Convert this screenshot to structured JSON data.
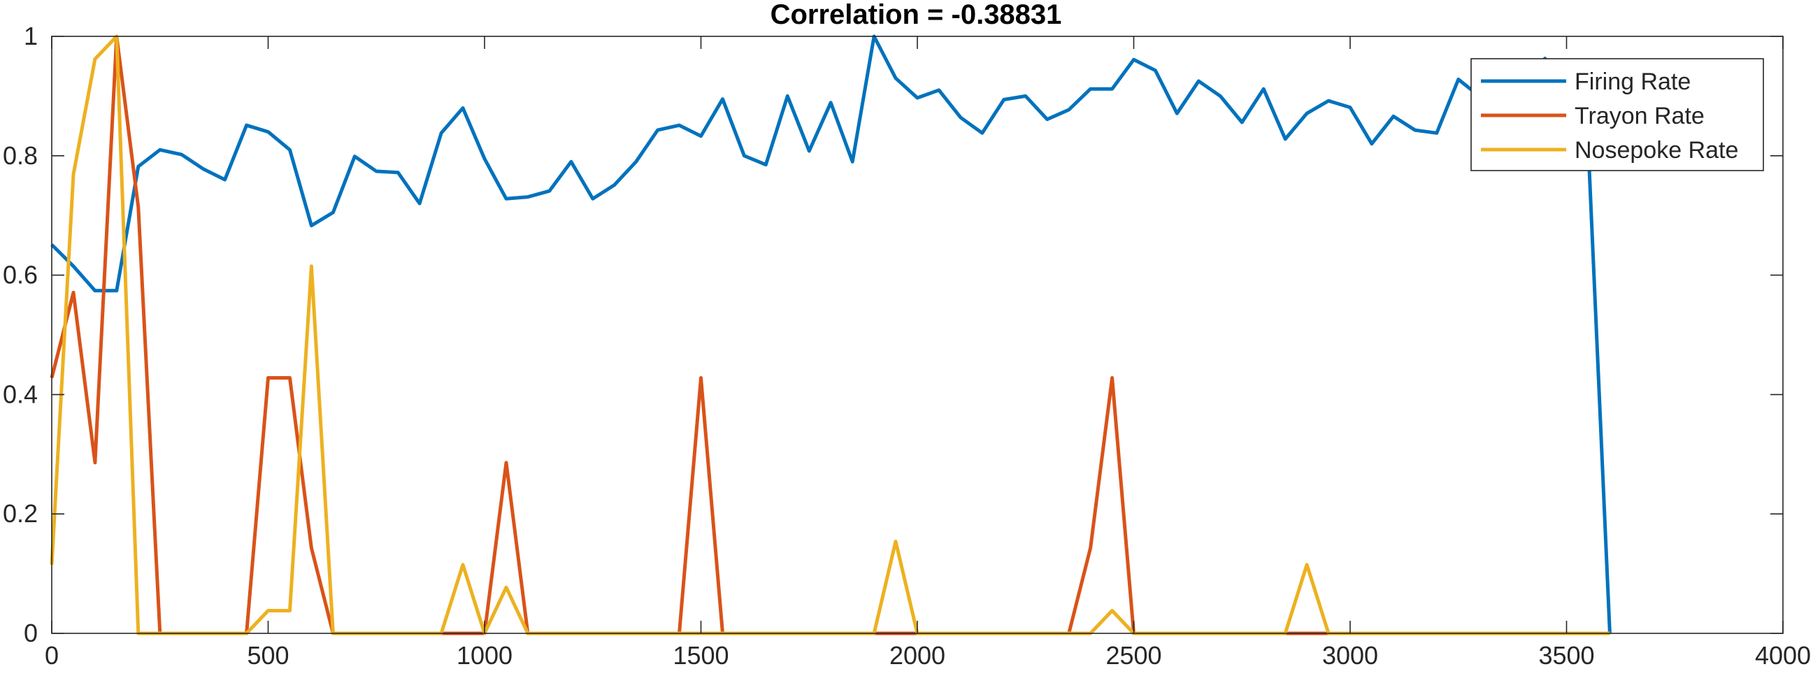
{
  "chart_data": {
    "type": "line",
    "title": "Correlation = -0.38831",
    "xlabel": "",
    "ylabel": "",
    "xlim": [
      0,
      4000
    ],
    "ylim": [
      0,
      1
    ],
    "xticks": [
      "0",
      "500",
      "1000",
      "1500",
      "2000",
      "2500",
      "3000",
      "3500",
      "4000"
    ],
    "yticks": [
      "0",
      "0.2",
      "0.4",
      "0.6",
      "0.8",
      "1"
    ],
    "grid": false,
    "legend": "top-right",
    "series": [
      {
        "name": "Firing Rate",
        "color": "#0072BD",
        "x": [
          0,
          50,
          100,
          150,
          200,
          250,
          300,
          350,
          400,
          450,
          500,
          550,
          600,
          650,
          700,
          750,
          800,
          850,
          900,
          950,
          1000,
          1050,
          1100,
          1150,
          1200,
          1250,
          1300,
          1350,
          1400,
          1450,
          1500,
          1550,
          1600,
          1650,
          1700,
          1750,
          1800,
          1850,
          1900,
          1950,
          2000,
          2050,
          2100,
          2150,
          2200,
          2250,
          2300,
          2350,
          2400,
          2450,
          2500,
          2550,
          2600,
          2650,
          2700,
          2750,
          2800,
          2850,
          2900,
          2950,
          3000,
          3050,
          3100,
          3150,
          3200,
          3250,
          3300,
          3350,
          3400,
          3450,
          3500,
          3550,
          3600
        ],
        "y": [
          0.651,
          0.615,
          0.574,
          0.574,
          0.782,
          0.81,
          0.802,
          0.778,
          0.76,
          0.851,
          0.84,
          0.81,
          0.683,
          0.705,
          0.799,
          0.774,
          0.772,
          0.72,
          0.838,
          0.88,
          0.795,
          0.728,
          0.731,
          0.741,
          0.79,
          0.728,
          0.751,
          0.79,
          0.843,
          0.851,
          0.833,
          0.895,
          0.8,
          0.785,
          0.9,
          0.808,
          0.889,
          0.79,
          1.0,
          0.93,
          0.897,
          0.91,
          0.864,
          0.838,
          0.894,
          0.9,
          0.861,
          0.877,
          0.912,
          0.912,
          0.961,
          0.943,
          0.871,
          0.925,
          0.9,
          0.856,
          0.912,
          0.828,
          0.871,
          0.892,
          0.881,
          0.82,
          0.866,
          0.843,
          0.838,
          0.928,
          0.899,
          0.887,
          0.905,
          0.963,
          0.92,
          0.82,
          0.0
        ]
      },
      {
        "name": "Trayon Rate",
        "color": "#D95319",
        "x": [
          0,
          50,
          100,
          150,
          200,
          250,
          300,
          350,
          400,
          450,
          500,
          550,
          600,
          650,
          700,
          750,
          800,
          850,
          900,
          950,
          1000,
          1050,
          1100,
          1150,
          1200,
          1250,
          1300,
          1350,
          1400,
          1450,
          1500,
          1550,
          1600,
          1650,
          1700,
          1750,
          1800,
          1850,
          1900,
          1950,
          2000,
          2050,
          2100,
          2150,
          2200,
          2250,
          2300,
          2350,
          2400,
          2450,
          2500,
          2550,
          2600,
          2650,
          2700,
          2750,
          2800,
          2850,
          2900,
          2950,
          3000,
          3050,
          3100,
          3150,
          3200,
          3250,
          3300,
          3350,
          3400,
          3450,
          3500,
          3550,
          3600
        ],
        "y": [
          0.428,
          0.571,
          0.286,
          1.0,
          0.714,
          0,
          0,
          0,
          0,
          0,
          0.428,
          0.428,
          0.143,
          0,
          0,
          0,
          0,
          0,
          0,
          0,
          0,
          0.286,
          0,
          0,
          0,
          0,
          0,
          0,
          0,
          0,
          0.428,
          0,
          0,
          0,
          0,
          0,
          0,
          0,
          0,
          0,
          0,
          0,
          0,
          0,
          0,
          0,
          0,
          0,
          0.143,
          0.428,
          0,
          0,
          0,
          0,
          0,
          0,
          0,
          0,
          0,
          0,
          0,
          0,
          0,
          0,
          0,
          0,
          0,
          0,
          0,
          0,
          0,
          0,
          0
        ]
      },
      {
        "name": "Nosepoke Rate",
        "color": "#EDB120",
        "x": [
          0,
          50,
          100,
          150,
          200,
          250,
          300,
          350,
          400,
          450,
          500,
          550,
          600,
          650,
          700,
          750,
          800,
          850,
          900,
          950,
          1000,
          1050,
          1100,
          1150,
          1200,
          1250,
          1300,
          1350,
          1400,
          1450,
          1500,
          1550,
          1600,
          1650,
          1700,
          1750,
          1800,
          1850,
          1900,
          1950,
          2000,
          2050,
          2100,
          2150,
          2200,
          2250,
          2300,
          2350,
          2400,
          2450,
          2500,
          2550,
          2600,
          2650,
          2700,
          2750,
          2800,
          2850,
          2900,
          2950,
          3000,
          3050,
          3100,
          3150,
          3200,
          3250,
          3300,
          3350,
          3400,
          3450,
          3500,
          3550,
          3600
        ],
        "y": [
          0.115,
          0.769,
          0.962,
          1.0,
          0,
          0,
          0,
          0,
          0,
          0,
          0.038,
          0.038,
          0.615,
          0,
          0,
          0,
          0,
          0,
          0,
          0.115,
          0,
          0.077,
          0,
          0,
          0,
          0,
          0,
          0,
          0,
          0,
          0,
          0,
          0,
          0,
          0,
          0,
          0,
          0,
          0,
          0.154,
          0,
          0,
          0,
          0,
          0,
          0,
          0,
          0,
          0,
          0.038,
          0,
          0,
          0,
          0,
          0,
          0,
          0,
          0,
          0.115,
          0,
          0,
          0,
          0,
          0,
          0,
          0,
          0,
          0,
          0,
          0,
          0,
          0,
          0
        ]
      }
    ]
  }
}
